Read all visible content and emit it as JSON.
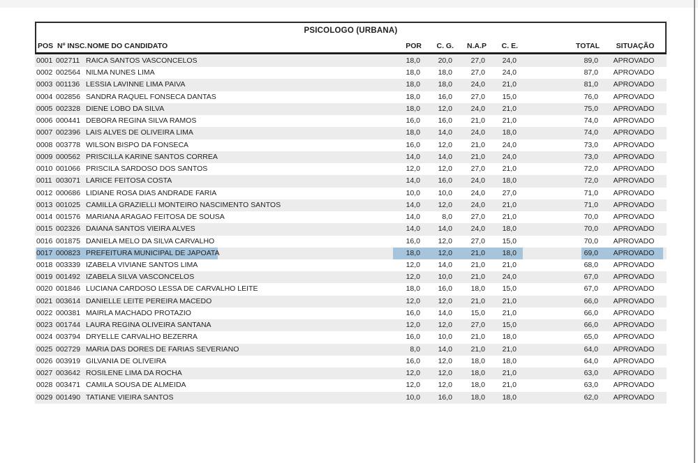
{
  "doc": {
    "title": "PSICOLOGO (URBANA)",
    "columns": {
      "pos": "POS",
      "insc": "Nº INSC.",
      "name": "NOME DO CANDIDATO",
      "por": "POR",
      "cg": "C. G.",
      "nap": "N.A.P",
      "ce": "C. E.",
      "total": "TOTAL",
      "situacao": "SITUAÇÃO"
    },
    "rows": [
      {
        "pos": "0001",
        "insc": "002711",
        "name": "RAICA SANTOS VASCONCELOS",
        "por": "18,0",
        "cg": "20,0",
        "nap": "27,0",
        "ce": "24,0",
        "total": "89,0",
        "situacao": "APROVADO",
        "selected": false
      },
      {
        "pos": "0002",
        "insc": "002564",
        "name": "NILMA NUNES LIMA",
        "por": "18,0",
        "cg": "18,0",
        "nap": "27,0",
        "ce": "24,0",
        "total": "87,0",
        "situacao": "APROVADO",
        "selected": false
      },
      {
        "pos": "0003",
        "insc": "001136",
        "name": "LESSIA LAVINNE LIMA PAIVA",
        "por": "18,0",
        "cg": "18,0",
        "nap": "24,0",
        "ce": "21,0",
        "total": "81,0",
        "situacao": "APROVADO",
        "selected": false
      },
      {
        "pos": "0004",
        "insc": "002856",
        "name": "SANDRA RAQUEL FONSECA DANTAS",
        "por": "18,0",
        "cg": "16,0",
        "nap": "27,0",
        "ce": "15,0",
        "total": "76,0",
        "situacao": "APROVADO",
        "selected": false
      },
      {
        "pos": "0005",
        "insc": "002328",
        "name": "DIENE LOBO DA SILVA",
        "por": "18,0",
        "cg": "12,0",
        "nap": "24,0",
        "ce": "21,0",
        "total": "75,0",
        "situacao": "APROVADO",
        "selected": false
      },
      {
        "pos": "0006",
        "insc": "000441",
        "name": "DEBORA REGINA SILVA RAMOS",
        "por": "16,0",
        "cg": "16,0",
        "nap": "21,0",
        "ce": "21,0",
        "total": "74,0",
        "situacao": "APROVADO",
        "selected": false
      },
      {
        "pos": "0007",
        "insc": "002396",
        "name": "LAIS ALVES DE OLIVEIRA LIMA",
        "por": "18,0",
        "cg": "14,0",
        "nap": "24,0",
        "ce": "18,0",
        "total": "74,0",
        "situacao": "APROVADO",
        "selected": false
      },
      {
        "pos": "0008",
        "insc": "003778",
        "name": "WILSON BISPO DA FONSECA",
        "por": "16,0",
        "cg": "12,0",
        "nap": "21,0",
        "ce": "24,0",
        "total": "73,0",
        "situacao": "APROVADO",
        "selected": false
      },
      {
        "pos": "0009",
        "insc": "000562",
        "name": "PRISCILLA KARINE SANTOS CORREA",
        "por": "14,0",
        "cg": "14,0",
        "nap": "21,0",
        "ce": "24,0",
        "total": "73,0",
        "situacao": "APROVADO",
        "selected": false
      },
      {
        "pos": "0010",
        "insc": "001066",
        "name": "PRISCILA SARDOSO DOS SANTOS",
        "por": "12,0",
        "cg": "12,0",
        "nap": "27,0",
        "ce": "21,0",
        "total": "72,0",
        "situacao": "APROVADO",
        "selected": false
      },
      {
        "pos": "0011",
        "insc": "003071",
        "name": "LARICE FEITOSA COSTA",
        "por": "14,0",
        "cg": "16,0",
        "nap": "24,0",
        "ce": "18,0",
        "total": "72,0",
        "situacao": "APROVADO",
        "selected": false
      },
      {
        "pos": "0012",
        "insc": "000686",
        "name": "LIDIANE ROSA DIAS ANDRADE FARIA",
        "por": "10,0",
        "cg": "10,0",
        "nap": "24,0",
        "ce": "27,0",
        "total": "71,0",
        "situacao": "APROVADO",
        "selected": false
      },
      {
        "pos": "0013",
        "insc": "001025",
        "name": "CAMILLA GRAZIELLI MONTEIRO NASCIMENTO SANTOS",
        "por": "14,0",
        "cg": "12,0",
        "nap": "24,0",
        "ce": "21,0",
        "total": "71,0",
        "situacao": "APROVADO",
        "selected": false
      },
      {
        "pos": "0014",
        "insc": "001576",
        "name": "MARIANA ARAGAO FEITOSA DE SOUSA",
        "por": "14,0",
        "cg": "8,0",
        "nap": "27,0",
        "ce": "21,0",
        "total": "70,0",
        "situacao": "APROVADO",
        "selected": false
      },
      {
        "pos": "0015",
        "insc": "002326",
        "name": "DAIANA SANTOS VIEIRA ALVES",
        "por": "14,0",
        "cg": "14,0",
        "nap": "24,0",
        "ce": "18,0",
        "total": "70,0",
        "situacao": "APROVADO",
        "selected": false
      },
      {
        "pos": "0016",
        "insc": "001875",
        "name": "DANIELA MELO DA SILVA CARVALHO",
        "por": "16,0",
        "cg": "12,0",
        "nap": "27,0",
        "ce": "15,0",
        "total": "70,0",
        "situacao": "APROVADO",
        "selected": false
      },
      {
        "pos": "0017",
        "insc": "000823",
        "name": "PREFEITURA MUNICIPAL DE JAPOATA",
        "por": "18,0",
        "cg": "12,0",
        "nap": "21,0",
        "ce": "18,0",
        "total": "69,0",
        "situacao": "APROVADO",
        "selected": true
      },
      {
        "pos": "0018",
        "insc": "003339",
        "name": "IZABELA VIVIANE SANTOS LIMA",
        "por": "12,0",
        "cg": "14,0",
        "nap": "21,0",
        "ce": "21,0",
        "total": "68,0",
        "situacao": "APROVADO",
        "selected": false
      },
      {
        "pos": "0019",
        "insc": "001492",
        "name": "IZABELA SILVA VASCONCELOS",
        "por": "12,0",
        "cg": "10,0",
        "nap": "21,0",
        "ce": "24,0",
        "total": "67,0",
        "situacao": "APROVADO",
        "selected": false
      },
      {
        "pos": "0020",
        "insc": "001846",
        "name": "LUCIANA CARDOSO LESSA DE CARVALHO LEITE",
        "por": "18,0",
        "cg": "16,0",
        "nap": "18,0",
        "ce": "15,0",
        "total": "67,0",
        "situacao": "APROVADO",
        "selected": false
      },
      {
        "pos": "0021",
        "insc": "003614",
        "name": "DANIELLE LEITE PEREIRA MACEDO",
        "por": "12,0",
        "cg": "12,0",
        "nap": "21,0",
        "ce": "21,0",
        "total": "66,0",
        "situacao": "APROVADO",
        "selected": false
      },
      {
        "pos": "0022",
        "insc": "000381",
        "name": "MAIRLA MACHADO PROTAZIO",
        "por": "16,0",
        "cg": "14,0",
        "nap": "15,0",
        "ce": "21,0",
        "total": "66,0",
        "situacao": "APROVADO",
        "selected": false
      },
      {
        "pos": "0023",
        "insc": "001744",
        "name": "LAURA REGINA OLIVEIRA SANTANA",
        "por": "12,0",
        "cg": "12,0",
        "nap": "27,0",
        "ce": "15,0",
        "total": "66,0",
        "situacao": "APROVADO",
        "selected": false
      },
      {
        "pos": "0024",
        "insc": "003794",
        "name": "DRYELLE CARVALHO BEZERRA",
        "por": "16,0",
        "cg": "10,0",
        "nap": "21,0",
        "ce": "18,0",
        "total": "65,0",
        "situacao": "APROVADO",
        "selected": false
      },
      {
        "pos": "0025",
        "insc": "002729",
        "name": "MARIA DAS DORES DE FARIAS SEVERIANO",
        "por": "8,0",
        "cg": "14,0",
        "nap": "21,0",
        "ce": "21,0",
        "total": "64,0",
        "situacao": "APROVADO",
        "selected": false
      },
      {
        "pos": "0026",
        "insc": "003919",
        "name": "GILVANIA DE OLIVEIRA",
        "por": "16,0",
        "cg": "12,0",
        "nap": "18,0",
        "ce": "18,0",
        "total": "64,0",
        "situacao": "APROVADO",
        "selected": false
      },
      {
        "pos": "0027",
        "insc": "003642",
        "name": "ROSILENE LIMA DA ROCHA",
        "por": "12,0",
        "cg": "12,0",
        "nap": "18,0",
        "ce": "21,0",
        "total": "63,0",
        "situacao": "APROVADO",
        "selected": false
      },
      {
        "pos": "0028",
        "insc": "003471",
        "name": "CAMILA SOUSA DE ALMEIDA",
        "por": "12,0",
        "cg": "12,0",
        "nap": "18,0",
        "ce": "21,0",
        "total": "63,0",
        "situacao": "APROVADO",
        "selected": false
      },
      {
        "pos": "0029",
        "insc": "001490",
        "name": "TATIANE VIEIRA SANTOS",
        "por": "10,0",
        "cg": "16,0",
        "nap": "18,0",
        "ce": "18,0",
        "total": "62,0",
        "situacao": "APROVADO",
        "selected": false
      }
    ],
    "colors": {
      "selection": "#a6c4dc",
      "zebra": "#ececec",
      "border": "#2b2b2b"
    }
  }
}
